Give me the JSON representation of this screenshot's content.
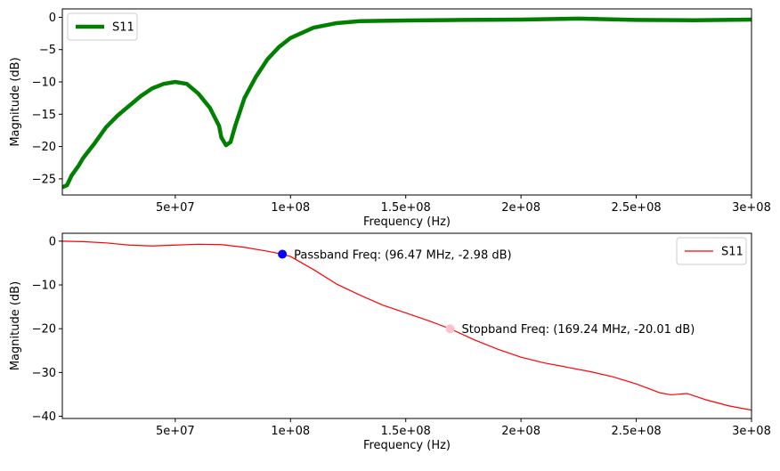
{
  "chart_data": [
    {
      "type": "line",
      "xlabel": "Frequency (Hz)",
      "ylabel": "Magnitude (dB)",
      "xlim": [
        1000000,
        300000000
      ],
      "ylim": [
        -27.5,
        1.3
      ],
      "xticks": [
        50000000,
        100000000,
        150000000,
        200000000,
        250000000,
        300000000
      ],
      "xtick_labels": [
        "5e+07",
        "1e+08",
        "1.5e+08",
        "2e+08",
        "2.5e+08",
        "3e+08"
      ],
      "yticks": [
        0,
        -5,
        -10,
        -15,
        -20,
        -25
      ],
      "ytick_labels": [
        "0",
        "−5",
        "−10",
        "−15",
        "−20",
        "−25"
      ],
      "legend": "top-left",
      "grid": false,
      "series": [
        {
          "name": "S11",
          "color": "#008000",
          "points": [
            [
              1000000,
              -26.3
            ],
            [
              3000000,
              -26.0
            ],
            [
              5000000,
              -24.5
            ],
            [
              8000000,
              -23.0
            ],
            [
              10000000,
              -21.8
            ],
            [
              15000000,
              -19.5
            ],
            [
              20000000,
              -17.0
            ],
            [
              25000000,
              -15.2
            ],
            [
              30000000,
              -13.7
            ],
            [
              35000000,
              -12.2
            ],
            [
              40000000,
              -11.0
            ],
            [
              45000000,
              -10.3
            ],
            [
              50000000,
              -10.0
            ],
            [
              55000000,
              -10.3
            ],
            [
              60000000,
              -11.8
            ],
            [
              65000000,
              -14.0
            ],
            [
              69000000,
              -16.8
            ],
            [
              70000000,
              -18.6
            ],
            [
              72000000,
              -19.8
            ],
            [
              74000000,
              -19.3
            ],
            [
              76000000,
              -16.8
            ],
            [
              80000000,
              -12.5
            ],
            [
              85000000,
              -9.2
            ],
            [
              90000000,
              -6.5
            ],
            [
              95000000,
              -4.6
            ],
            [
              100000000,
              -3.2
            ],
            [
              110000000,
              -1.6
            ],
            [
              120000000,
              -0.9
            ],
            [
              130000000,
              -0.6
            ],
            [
              150000000,
              -0.5
            ],
            [
              175000000,
              -0.4
            ],
            [
              200000000,
              -0.35
            ],
            [
              225000000,
              -0.2
            ],
            [
              250000000,
              -0.4
            ],
            [
              275000000,
              -0.45
            ],
            [
              300000000,
              -0.35
            ]
          ]
        }
      ]
    },
    {
      "type": "line",
      "xlabel": "Frequency (Hz)",
      "ylabel": "Magnitude (dB)",
      "xlim": [
        1000000,
        300000000
      ],
      "ylim": [
        -40.5,
        1.8
      ],
      "xticks": [
        50000000,
        100000000,
        150000000,
        200000000,
        250000000,
        300000000
      ],
      "xtick_labels": [
        "5e+07",
        "1e+08",
        "1.5e+08",
        "2e+08",
        "2.5e+08",
        "3e+08"
      ],
      "yticks": [
        0,
        -10,
        -20,
        -30,
        -40
      ],
      "ytick_labels": [
        "0",
        "−10",
        "−20",
        "−30",
        "−40"
      ],
      "legend": "top-right",
      "grid": false,
      "series": [
        {
          "name": "S11",
          "color": "#ff0000",
          "points": [
            [
              1000000,
              0.0
            ],
            [
              10000000,
              -0.1
            ],
            [
              20000000,
              -0.4
            ],
            [
              30000000,
              -0.9
            ],
            [
              40000000,
              -1.1
            ],
            [
              50000000,
              -0.9
            ],
            [
              60000000,
              -0.7
            ],
            [
              70000000,
              -0.8
            ],
            [
              80000000,
              -1.4
            ],
            [
              90000000,
              -2.3
            ],
            [
              96470000,
              -2.98
            ],
            [
              100000000,
              -3.5
            ],
            [
              110000000,
              -6.5
            ],
            [
              120000000,
              -9.8
            ],
            [
              130000000,
              -12.3
            ],
            [
              140000000,
              -14.6
            ],
            [
              150000000,
              -16.4
            ],
            [
              160000000,
              -18.2
            ],
            [
              169240000,
              -20.01
            ],
            [
              180000000,
              -22.6
            ],
            [
              190000000,
              -24.7
            ],
            [
              200000000,
              -26.5
            ],
            [
              210000000,
              -27.8
            ],
            [
              220000000,
              -28.8
            ],
            [
              230000000,
              -29.8
            ],
            [
              240000000,
              -31.0
            ],
            [
              250000000,
              -32.6
            ],
            [
              260000000,
              -34.6
            ],
            [
              265000000,
              -35.1
            ],
            [
              272000000,
              -34.8
            ],
            [
              280000000,
              -36.2
            ],
            [
              290000000,
              -37.6
            ],
            [
              300000000,
              -38.6
            ]
          ]
        }
      ],
      "markers": [
        {
          "x": 96470000,
          "y": -2.98,
          "color": "#0000ff",
          "label": "Passband Freq: (96.47 MHz, -2.98 dB)"
        },
        {
          "x": 169240000,
          "y": -20.01,
          "color": "#ffc0cb",
          "label": "Stopband Freq: (169.24 MHz, -20.01 dB)"
        }
      ]
    }
  ]
}
